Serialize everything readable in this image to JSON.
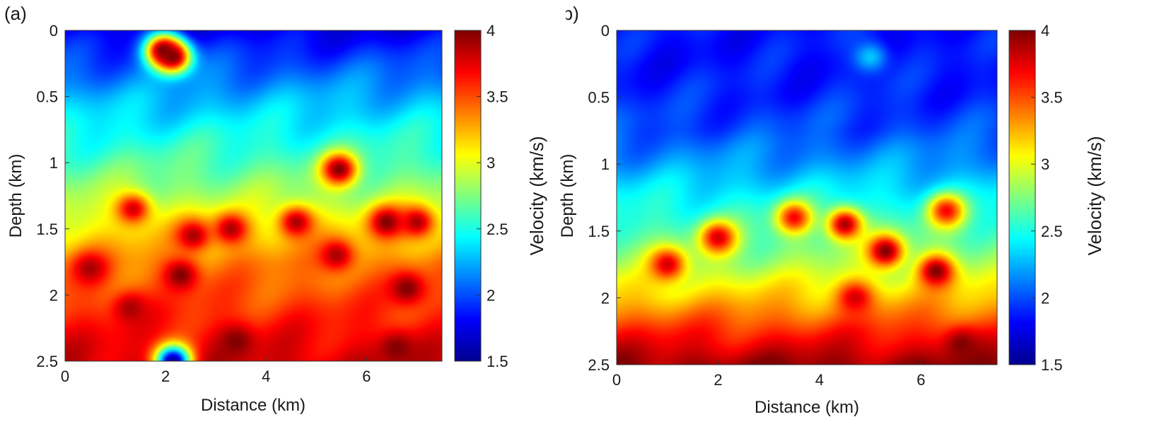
{
  "colors": {
    "colormap": "jet",
    "jet_stops": [
      "#00008f",
      "#0000ff",
      "#0080ff",
      "#00ffff",
      "#80ff80",
      "#ffff00",
      "#ff8000",
      "#ff0000",
      "#800000"
    ]
  },
  "chart_data": [
    {
      "type": "heatmap",
      "panel_label": "(a)",
      "xlabel": "Distance (km)",
      "ylabel": "Depth (km)",
      "xlim": [
        0,
        7.5
      ],
      "ylim": [
        0,
        2.5
      ],
      "y_reversed": true,
      "xticks": [
        "0",
        "2",
        "4",
        "6"
      ],
      "yticks": [
        "0",
        "0.5",
        "1",
        "1.5",
        "2",
        "2.5"
      ],
      "colorbar": {
        "label": "Velocity (km/s)",
        "range": [
          1.5,
          4
        ],
        "ticks": [
          "1.5",
          "2",
          "2.5",
          "3",
          "3.5",
          "4"
        ]
      },
      "velocity_trend": {
        "depth": [
          0,
          0.25,
          0.5,
          0.75,
          1.0,
          1.25,
          1.5,
          1.75,
          2.0,
          2.25,
          2.5
        ],
        "velocity": [
          1.75,
          2.0,
          2.25,
          2.45,
          2.65,
          2.85,
          3.1,
          3.35,
          3.5,
          3.65,
          3.8
        ]
      },
      "anomalies": [
        {
          "x": 1.95,
          "depth": 0.15,
          "velocity": 4.0
        },
        {
          "x": 2.15,
          "depth": 0.2,
          "velocity": 4.0
        },
        {
          "x": 5.45,
          "depth": 1.05,
          "velocity": 4.0
        },
        {
          "x": 1.35,
          "depth": 1.35,
          "velocity": 3.8
        },
        {
          "x": 2.55,
          "depth": 1.55,
          "velocity": 3.9
        },
        {
          "x": 3.3,
          "depth": 1.5,
          "velocity": 3.9
        },
        {
          "x": 4.6,
          "depth": 1.45,
          "velocity": 3.9
        },
        {
          "x": 6.4,
          "depth": 1.45,
          "velocity": 4.0
        },
        {
          "x": 7.0,
          "depth": 1.45,
          "velocity": 3.9
        },
        {
          "x": 0.5,
          "depth": 1.8,
          "velocity": 3.9
        },
        {
          "x": 2.3,
          "depth": 1.85,
          "velocity": 4.0
        },
        {
          "x": 5.4,
          "depth": 1.7,
          "velocity": 3.9
        },
        {
          "x": 6.8,
          "depth": 1.95,
          "velocity": 4.0
        },
        {
          "x": 1.3,
          "depth": 2.1,
          "velocity": 3.9
        },
        {
          "x": 3.4,
          "depth": 2.35,
          "velocity": 4.0
        },
        {
          "x": 6.6,
          "depth": 2.4,
          "velocity": 4.0
        },
        {
          "x": 2.15,
          "depth": 2.5,
          "velocity": 1.5
        }
      ]
    },
    {
      "type": "heatmap",
      "panel_label": "(b)",
      "xlabel": "Distance (km)",
      "ylabel": "Depth (km)",
      "xlim": [
        0,
        7.5
      ],
      "ylim": [
        0,
        2.5
      ],
      "y_reversed": true,
      "xticks": [
        "0",
        "2",
        "4",
        "6"
      ],
      "yticks": [
        "0",
        "0.5",
        "1",
        "1.5",
        "2",
        "2.5"
      ],
      "colorbar": {
        "label": "Velocity (km/s)",
        "range": [
          1.5,
          4
        ],
        "ticks": [
          "1.5",
          "2",
          "2.5",
          "3",
          "3.5",
          "4"
        ]
      },
      "velocity_trend": {
        "depth": [
          0,
          0.25,
          0.5,
          0.75,
          1.0,
          1.25,
          1.5,
          1.75,
          2.0,
          2.25,
          2.5
        ],
        "velocity": [
          1.85,
          1.85,
          1.9,
          2.0,
          2.2,
          2.45,
          2.65,
          2.85,
          3.2,
          3.6,
          3.95
        ]
      },
      "anomalies": [
        {
          "x": 1.0,
          "depth": 1.75,
          "velocity": 3.8
        },
        {
          "x": 2.0,
          "depth": 1.55,
          "velocity": 3.8
        },
        {
          "x": 3.5,
          "depth": 1.4,
          "velocity": 3.7
        },
        {
          "x": 4.5,
          "depth": 1.45,
          "velocity": 3.9
        },
        {
          "x": 5.3,
          "depth": 1.65,
          "velocity": 4.0
        },
        {
          "x": 6.3,
          "depth": 1.8,
          "velocity": 4.0
        },
        {
          "x": 6.5,
          "depth": 1.35,
          "velocity": 3.7
        },
        {
          "x": 4.7,
          "depth": 2.0,
          "velocity": 3.8
        },
        {
          "x": 6.8,
          "depth": 2.35,
          "velocity": 4.0
        },
        {
          "x": 5.0,
          "depth": 0.2,
          "velocity": 2.3
        }
      ]
    }
  ]
}
